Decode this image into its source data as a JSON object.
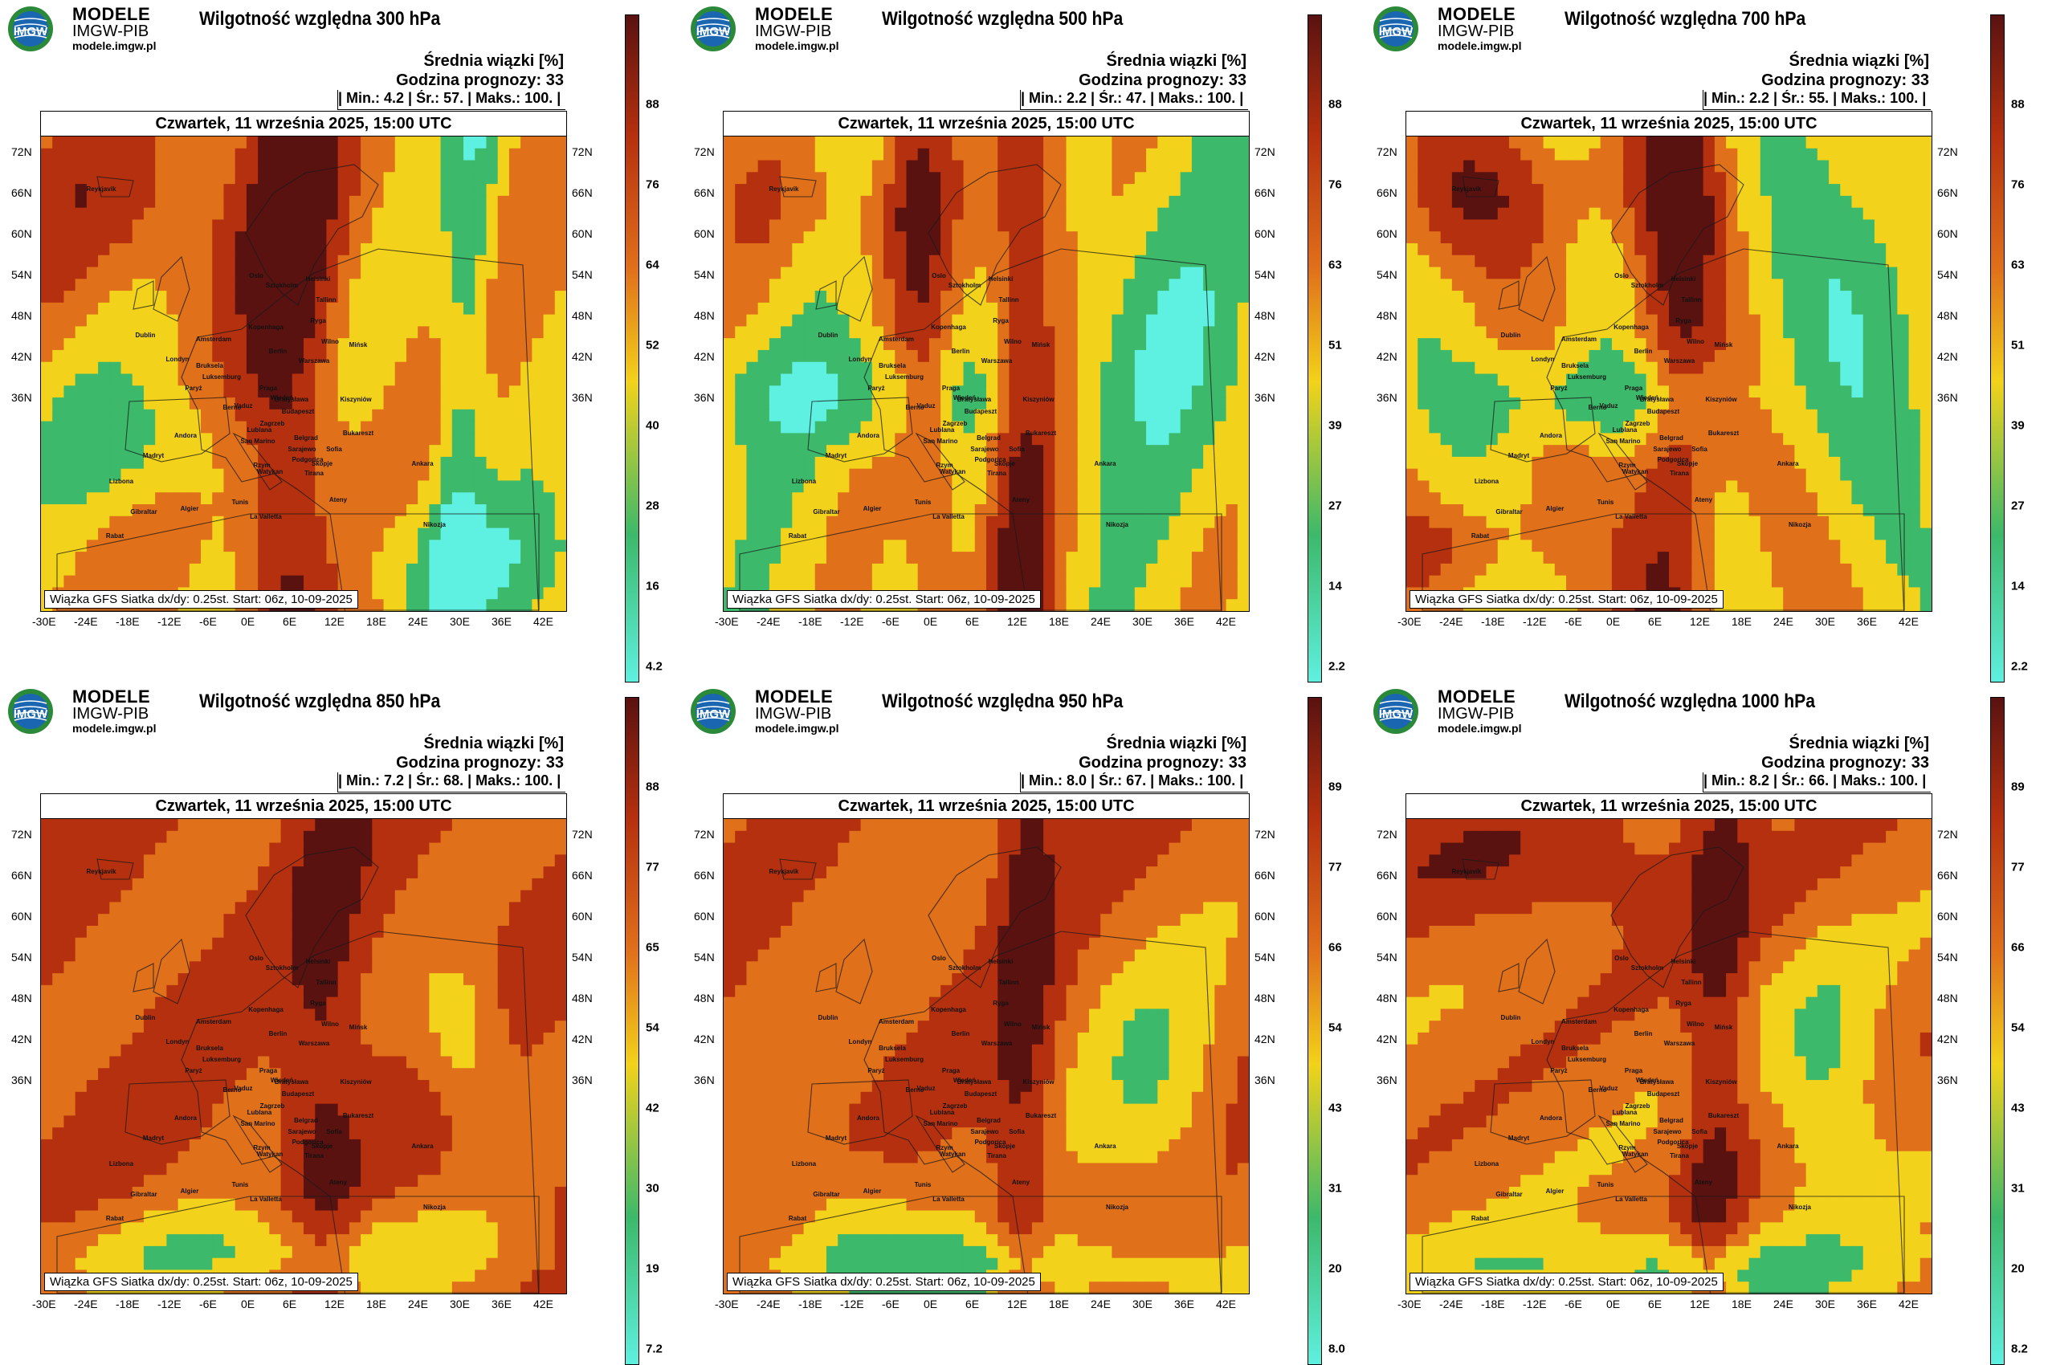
{
  "brand": {
    "name": "MODELE",
    "org": "IMGW-PIB",
    "url": "modele.imgw.pl",
    "logo_text": "IMGW"
  },
  "common": {
    "subtitle": "Średnia wiązki [%]",
    "forecast_hour": "Godzina prognozy: 33",
    "date": "Czwartek, 11 września 2025, 15:00 UTC",
    "footer": "Wiązka GFS Siatka dx/dy: 0.25st. Start: 06z, 10-09-2025",
    "lat_ticks": [
      "72N",
      "66N",
      "60N",
      "54N",
      "48N",
      "42N",
      "36N"
    ],
    "lon_ticks": [
      "-30E",
      "-24E",
      "-18E",
      "-12E",
      "-6E",
      "0E",
      "6E",
      "12E",
      "18E",
      "24E",
      "30E",
      "36E",
      "42E"
    ],
    "cities": [
      "Oslo",
      "Sztokholm",
      "Helsinki",
      "Tallinn",
      "Ryga",
      "Kopenhaga",
      "Wilno",
      "Mińsk",
      "Warszawa",
      "Berlin",
      "Amsterdam",
      "Londyn",
      "Bruksela",
      "Luksemburg",
      "Paryż",
      "Praga",
      "Wiedeń",
      "Bratysława",
      "Budapeszt",
      "Kiszyniów",
      "Bukareszt",
      "Belgrad",
      "Sofia",
      "Zagrzeb",
      "Lublana",
      "Berno",
      "Vaduz",
      "San Marino",
      "Rzym",
      "Watykan",
      "Sarajewo",
      "Podgorica",
      "Tirana",
      "Skopje",
      "Ateny",
      "Ankara",
      "Andora",
      "Madryt",
      "Lizbona",
      "Gibraltar",
      "Rabat",
      "Algier",
      "Tunis",
      "La Valletta",
      "Nikozja",
      "Dublin",
      "Reykjavik"
    ]
  },
  "panels": [
    {
      "title": "Wilgotność względna 300 hPa",
      "min": "4.2",
      "avg": "57.",
      "max": "100.",
      "cbar_ticks": [
        "88",
        "76",
        "64",
        "52",
        "40",
        "28",
        "16",
        "4.2"
      ],
      "field": "humid_ne"
    },
    {
      "title": "Wilgotność względna 500 hPa",
      "min": "2.2",
      "avg": "47.",
      "max": "100.",
      "cbar_ticks": [
        "88",
        "76",
        "63",
        "51",
        "39",
        "27",
        "14",
        "2.2"
      ],
      "field": "mixed_green"
    },
    {
      "title": "Wilgotność względna 700 hPa",
      "min": "2.2",
      "avg": "55.",
      "max": "100.",
      "cbar_ticks": [
        "88",
        "76",
        "63",
        "51",
        "39",
        "27",
        "14",
        "2.2"
      ],
      "field": "mixed_orange"
    },
    {
      "title": "Wilgotność względna 850 hPa",
      "min": "7.2",
      "avg": "68.",
      "max": "100.",
      "cbar_ticks": [
        "88",
        "77",
        "65",
        "54",
        "42",
        "30",
        "19",
        "7.2"
      ],
      "field": "moist"
    },
    {
      "title": "Wilgotność względna 950 hPa",
      "min": "8.0",
      "avg": "67.",
      "max": "100.",
      "cbar_ticks": [
        "89",
        "77",
        "66",
        "54",
        "43",
        "31",
        "20",
        "8.0"
      ],
      "field": "moist_south"
    },
    {
      "title": "Wilgotność względna 1000 hPa",
      "min": "8.2",
      "avg": "66.",
      "max": "100.",
      "cbar_ticks": [
        "89",
        "77",
        "66",
        "54",
        "43",
        "31",
        "20",
        "8.2"
      ],
      "field": "surface"
    }
  ],
  "labels": {
    "min": "Min.:",
    "avg": "Śr.:",
    "max": "Maks.:"
  },
  "colors": {
    "dark": "#5a1210",
    "red": "#b5300e",
    "orange": "#e0701a",
    "yellow": "#f2d21a",
    "green": "#3cb96a",
    "cyan": "#5ef0e0"
  }
}
